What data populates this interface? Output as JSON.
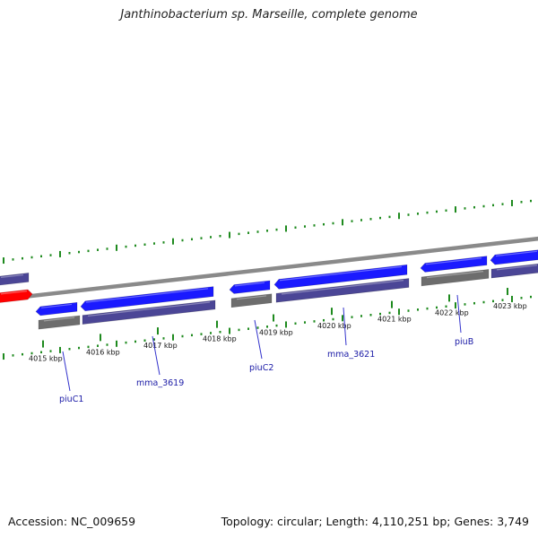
{
  "title": "Janthinobacterium sp. Marseille, complete genome",
  "colors": {
    "forward_cds": "#1a1aff",
    "reverse_cds": "#4b4696",
    "gray_feature": "#6d6d6d",
    "highlight_feature": "#ff0000",
    "backbone": "#8a8a8a",
    "gc_ticks": "#1e8a1e",
    "gene_label": "#1a1aa6"
  },
  "kbp_ticks": [
    "4015 kbp",
    "4016 kbp",
    "4017 kbp",
    "4018 kbp",
    "4019 kbp",
    "4020 kbp",
    "4021 kbp",
    "4022 kbp",
    "4023 kbp"
  ],
  "gene_labels": [
    "piuC1",
    "mma_3619",
    "piuC2",
    "mma_3621",
    "piuB"
  ],
  "footer": {
    "accession_label": "Accession:",
    "accession": "NC_009659",
    "topology_label": "Topology:",
    "topology": "circular;",
    "length_label": "Length:",
    "length": "4,110,251 bp;",
    "genes_label": "Genes:",
    "genes": "3,749"
  }
}
